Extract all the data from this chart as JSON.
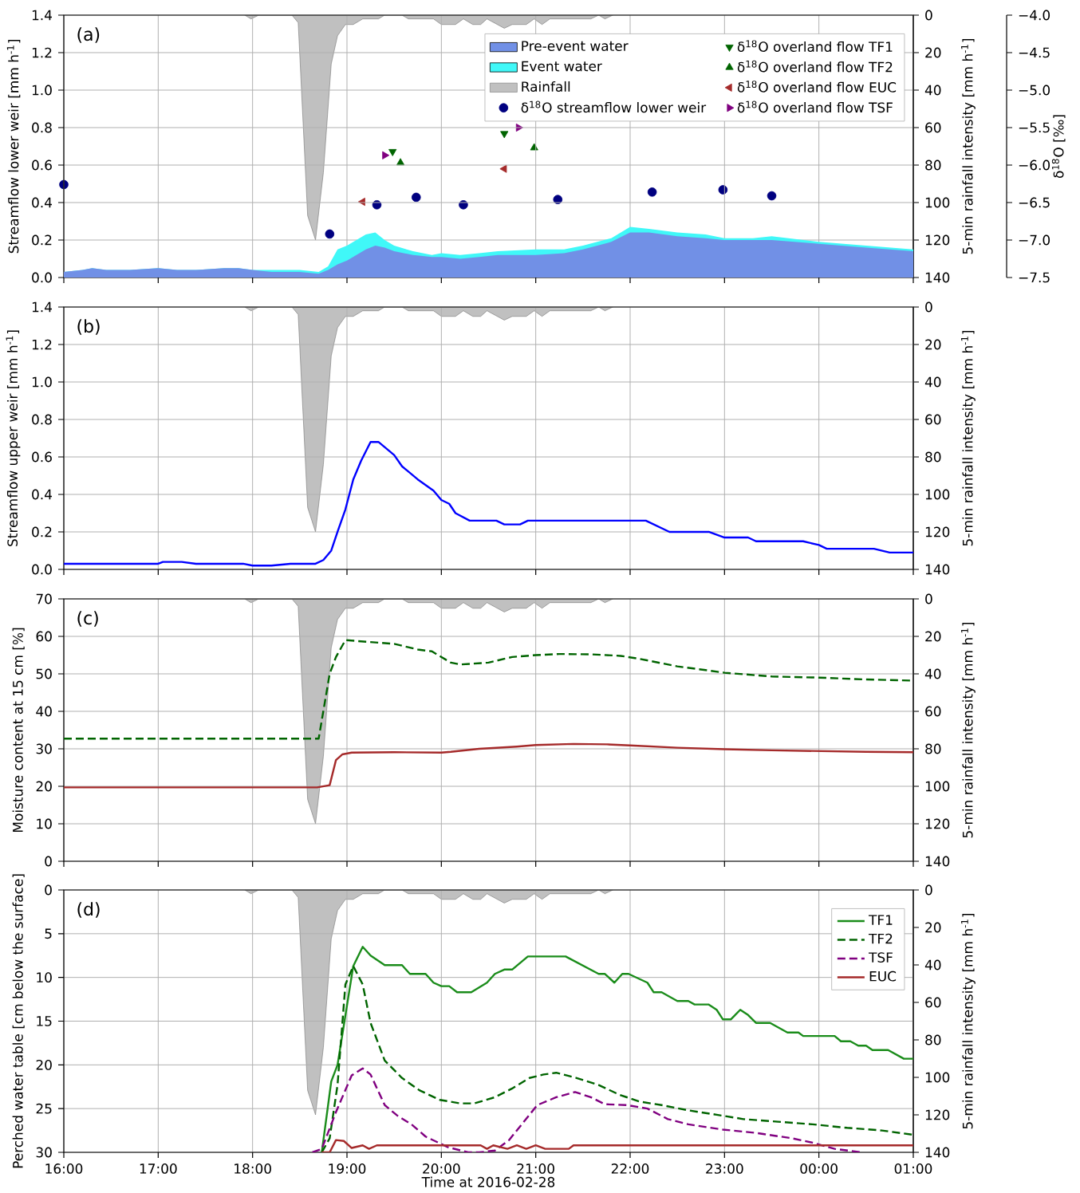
{
  "chart_data": [
    {
      "type": "area",
      "title": "(a)",
      "ylabel": "Streamflow lower weir [mm h$^{-1}$]",
      "y2label": "5-min rainfall intensity [mm h$^{-1}$]",
      "y3label": "δ$^{18}$O [‰]",
      "stacked": true,
      "grid": true,
      "legend": "top right",
      "tick_labels": "y",
      "xlim": [
        "2016-02-28T16:00",
        "2016-02-29T01:00"
      ],
      "xticks": [
        {
          "value": "2016-02-28T16:00",
          "label": null
        },
        {
          "value": "2016-02-28T17:00",
          "label": null
        },
        {
          "value": "2016-02-28T18:00",
          "label": null
        },
        {
          "value": "2016-02-28T19:00",
          "label": null
        },
        {
          "value": "2016-02-28T20:00",
          "label": null
        },
        {
          "value": "2016-02-28T21:00",
          "label": null
        },
        {
          "value": "2016-02-28T22:00",
          "label": null
        },
        {
          "value": "2016-02-28T23:00",
          "label": null
        },
        {
          "value": "2016-02-29T00:00",
          "label": null
        },
        {
          "value": "2016-02-29T01:00",
          "label": null
        }
      ],
      "ylim": [
        0,
        1.4
      ],
      "yticks": [
        {
          "value": 0,
          "label": "0.0"
        },
        {
          "value": 0.2,
          "label": "0.2"
        },
        {
          "value": 0.4,
          "label": "0.4"
        },
        {
          "value": 0.6,
          "label": "0.6"
        },
        {
          "value": 0.8,
          "label": "0.8"
        },
        {
          "value": 1.0,
          "label": "1.0"
        },
        {
          "value": 1.2,
          "label": "1.2"
        },
        {
          "value": 1.4,
          "label": "1.4"
        }
      ],
      "y2lim": [
        140,
        0
      ],
      "y2ticks": [
        0,
        20,
        40,
        60,
        80,
        100,
        120,
        140
      ],
      "y3lim": [
        -7.5,
        -4.0
      ],
      "y3ticks": [
        {
          "value": -4.0,
          "label": "−4.0"
        },
        {
          "value": -4.5,
          "label": "−4.5"
        },
        {
          "value": -5.0,
          "label": "−5.0"
        },
        {
          "value": -5.5,
          "label": "−5.5"
        },
        {
          "value": -6.0,
          "label": "−6.0"
        },
        {
          "value": -6.5,
          "label": "−6.5"
        },
        {
          "value": -7.0,
          "label": "−7.0"
        },
        {
          "value": -7.5,
          "label": "−7.5"
        }
      ],
      "series": [
        {
          "name": "Pre-event water",
          "color": "#7190e6",
          "x": [
            "2016-02-28T16:00",
            "2016-02-28T16:12",
            "2016-02-28T16:18",
            "2016-02-28T16:27",
            "2016-02-28T16:42",
            "2016-02-28T17:00",
            "2016-02-28T17:12",
            "2016-02-28T17:24",
            "2016-02-28T17:42",
            "2016-02-28T17:51",
            "2016-02-28T18:00",
            "2016-02-28T18:12",
            "2016-02-28T18:30",
            "2016-02-28T18:42",
            "2016-02-28T18:48",
            "2016-02-28T18:54",
            "2016-02-28T19:00",
            "2016-02-28T19:06",
            "2016-02-28T19:12",
            "2016-02-28T19:18",
            "2016-02-28T19:24",
            "2016-02-28T19:30",
            "2016-02-28T19:42",
            "2016-02-28T19:54",
            "2016-02-28T20:00",
            "2016-02-28T20:12",
            "2016-02-28T20:24",
            "2016-02-28T20:36",
            "2016-02-28T21:00",
            "2016-02-28T21:18",
            "2016-02-28T21:30",
            "2016-02-28T21:48",
            "2016-02-28T22:00",
            "2016-02-28T22:12",
            "2016-02-28T22:30",
            "2016-02-28T22:48",
            "2016-02-28T23:00",
            "2016-02-28T23:06",
            "2016-02-28T23:18",
            "2016-02-28T23:30",
            "2016-02-29T00:00",
            "2016-02-29T00:30",
            "2016-02-29T01:00"
          ],
          "values": [
            0.03,
            0.04,
            0.05,
            0.04,
            0.04,
            0.05,
            0.04,
            0.04,
            0.05,
            0.05,
            0.04,
            0.03,
            0.03,
            0.02,
            0.04,
            0.07,
            0.09,
            0.12,
            0.15,
            0.17,
            0.16,
            0.14,
            0.12,
            0.11,
            0.11,
            0.1,
            0.11,
            0.12,
            0.12,
            0.13,
            0.15,
            0.19,
            0.24,
            0.24,
            0.22,
            0.21,
            0.2,
            0.2,
            0.2,
            0.2,
            0.18,
            0.16,
            0.14
          ]
        },
        {
          "name": "Event water",
          "color": "#40f8f8",
          "x": [
            "2016-02-28T16:00",
            "2016-02-28T16:12",
            "2016-02-28T16:18",
            "2016-02-28T16:27",
            "2016-02-28T16:42",
            "2016-02-28T17:00",
            "2016-02-28T17:12",
            "2016-02-28T17:24",
            "2016-02-28T17:42",
            "2016-02-28T17:51",
            "2016-02-28T18:00",
            "2016-02-28T18:12",
            "2016-02-28T18:30",
            "2016-02-28T18:42",
            "2016-02-28T18:48",
            "2016-02-28T18:54",
            "2016-02-28T19:00",
            "2016-02-28T19:06",
            "2016-02-28T19:12",
            "2016-02-28T19:18",
            "2016-02-28T19:24",
            "2016-02-28T19:30",
            "2016-02-28T19:42",
            "2016-02-28T19:54",
            "2016-02-28T20:00",
            "2016-02-28T20:12",
            "2016-02-28T20:24",
            "2016-02-28T20:36",
            "2016-02-28T21:00",
            "2016-02-28T21:18",
            "2016-02-28T21:30",
            "2016-02-28T21:48",
            "2016-02-28T22:00",
            "2016-02-28T22:12",
            "2016-02-28T22:30",
            "2016-02-28T22:48",
            "2016-02-28T23:00",
            "2016-02-28T23:06",
            "2016-02-28T23:18",
            "2016-02-28T23:30",
            "2016-02-29T00:00",
            "2016-02-29T00:30",
            "2016-02-29T01:00"
          ],
          "values": [
            0,
            0,
            0,
            0,
            0,
            0,
            0,
            0,
            0,
            0,
            0,
            0.01,
            0.01,
            0.01,
            0.02,
            0.08,
            0.08,
            0.08,
            0.08,
            0.07,
            0.04,
            0.03,
            0.02,
            0.01,
            0.02,
            0.02,
            0.02,
            0.02,
            0.03,
            0.02,
            0.02,
            0.02,
            0.03,
            0.02,
            0.02,
            0.02,
            0.01,
            0.01,
            0.01,
            0.02,
            0.01,
            0.01,
            0.01
          ]
        },
        {
          "name": "Rainfall",
          "axis": "y2",
          "color": "#c0c0c0",
          "x": [
            "2016-02-28T17:55",
            "2016-02-28T17:59",
            "2016-02-28T18:04",
            "2016-02-28T18:25",
            "2016-02-28T18:29",
            "2016-02-28T18:35",
            "2016-02-28T18:40",
            "2016-02-28T18:45",
            "2016-02-28T18:50",
            "2016-02-28T18:54",
            "2016-02-28T18:59",
            "2016-02-28T19:04",
            "2016-02-28T19:10",
            "2016-02-28T19:20",
            "2016-02-28T19:24",
            "2016-02-28T19:35",
            "2016-02-28T19:39",
            "2016-02-28T19:55",
            "2016-02-28T20:00",
            "2016-02-28T20:09",
            "2016-02-28T20:14",
            "2016-02-28T20:20",
            "2016-02-28T20:25",
            "2016-02-28T20:29",
            "2016-02-28T20:40",
            "2016-02-28T20:45",
            "2016-02-28T20:54",
            "2016-02-28T20:59",
            "2016-02-28T21:04",
            "2016-02-28T21:09",
            "2016-02-28T21:35",
            "2016-02-28T21:40",
            "2016-02-28T21:44",
            "2016-02-28T21:49"
          ],
          "values": [
            0,
            2,
            0,
            0,
            4,
            107,
            120,
            84,
            26,
            11,
            5,
            5,
            2,
            2,
            0,
            0,
            2,
            2,
            5,
            5,
            2,
            5,
            5,
            2,
            7,
            5,
            5,
            2,
            5,
            2,
            2,
            0,
            2,
            0
          ]
        },
        {
          "name": "δ$^{18}$O streamflow lower weir",
          "type": "scatter",
          "axis": "y3",
          "marker": "circle",
          "color": "#000080",
          "x": [
            "2016-02-28T16:00",
            "2016-02-28T18:49",
            "2016-02-28T19:19",
            "2016-02-28T19:44",
            "2016-02-28T20:14",
            "2016-02-28T21:14",
            "2016-02-28T22:14",
            "2016-02-28T22:59",
            "2016-02-28T23:30"
          ],
          "values": [
            -6.26,
            -6.92,
            -6.53,
            -6.43,
            -6.53,
            -6.46,
            -6.36,
            -6.33,
            -6.41
          ]
        },
        {
          "name": "δ$^{18}$O overland flow TF1",
          "type": "scatter",
          "axis": "y3",
          "marker": "triangle_down",
          "color": "#006400",
          "x": [
            "2016-02-28T19:29",
            "2016-02-28T20:40"
          ],
          "values": [
            -5.82,
            -5.58
          ]
        },
        {
          "name": "δ$^{18}$O overland flow TF2",
          "type": "scatter",
          "axis": "y3",
          "marker": "triangle",
          "color": "#006400",
          "x": [
            "2016-02-28T19:34",
            "2016-02-28T20:59"
          ],
          "values": [
            -5.97,
            -5.77
          ]
        },
        {
          "name": "δ$^{18}$O overland flow EUC",
          "type": "scatter",
          "axis": "y3",
          "marker": "triangle_left",
          "color": "#a52a2a",
          "x": [
            "2016-02-28T19:10",
            "2016-02-28T20:40"
          ],
          "values": [
            -6.49,
            -6.05
          ]
        },
        {
          "name": "δ$^{18}$O overland flow TSF",
          "type": "scatter",
          "axis": "y3",
          "marker": "triangle_right",
          "color": "#800080",
          "x": [
            "2016-02-28T19:24",
            "2016-02-28T20:49"
          ],
          "values": [
            -5.87,
            -5.5
          ]
        }
      ]
    },
    {
      "type": "line",
      "title": "(b)",
      "ylabel": "Streamflow upper weir [mm h$^{-1}$]",
      "y2label": "5-min rainfall intensity [mm h$^{-1}$]",
      "grid": true,
      "tick_labels": "y",
      "xlim": [
        "2016-02-28T16:00",
        "2016-02-29T01:00"
      ],
      "xticks": [
        {
          "value": "2016-02-28T16:00",
          "label": null
        },
        {
          "value": "2016-02-28T17:00",
          "label": null
        },
        {
          "value": "2016-02-28T18:00",
          "label": null
        },
        {
          "value": "2016-02-28T19:00",
          "label": null
        },
        {
          "value": "2016-02-28T20:00",
          "label": null
        },
        {
          "value": "2016-02-28T21:00",
          "label": null
        },
        {
          "value": "2016-02-28T22:00",
          "label": null
        },
        {
          "value": "2016-02-28T23:00",
          "label": null
        },
        {
          "value": "2016-02-29T00:00",
          "label": null
        },
        {
          "value": "2016-02-29T01:00",
          "label": null
        }
      ],
      "ylim": [
        0,
        1.4
      ],
      "yticks": [
        {
          "value": 0,
          "label": "0.0"
        },
        {
          "value": 0.2,
          "label": "0.2"
        },
        {
          "value": 0.4,
          "label": "0.4"
        },
        {
          "value": 0.6,
          "label": "0.6"
        },
        {
          "value": 0.8,
          "label": "0.8"
        },
        {
          "value": 1.0,
          "label": "1.0"
        },
        {
          "value": 1.2,
          "label": "1.2"
        },
        {
          "value": 1.4,
          "label": "1.4"
        }
      ],
      "y2lim": [
        140,
        0
      ],
      "y2ticks": [
        0,
        20,
        40,
        60,
        80,
        100,
        120,
        140
      ],
      "series": [
        {
          "color": "#0000ff",
          "x": [
            "2016-02-28T16:00",
            "2016-02-28T17:00",
            "2016-02-28T17:03",
            "2016-02-28T17:09",
            "2016-02-28T17:15",
            "2016-02-28T17:24",
            "2016-02-28T17:54",
            "2016-02-28T18:00",
            "2016-02-28T18:06",
            "2016-02-28T18:12",
            "2016-02-28T18:24",
            "2016-02-28T18:36",
            "2016-02-28T18:40",
            "2016-02-28T18:45",
            "2016-02-28T18:50",
            "2016-02-28T18:54",
            "2016-02-28T18:59",
            "2016-02-28T19:04",
            "2016-02-28T19:09",
            "2016-02-28T19:15",
            "2016-02-28T19:20",
            "2016-02-28T19:30",
            "2016-02-28T19:35",
            "2016-02-28T19:45",
            "2016-02-28T19:55",
            "2016-02-28T20:00",
            "2016-02-28T20:05",
            "2016-02-28T20:09",
            "2016-02-28T20:18",
            "2016-02-28T20:35",
            "2016-02-28T20:40",
            "2016-02-28T20:50",
            "2016-02-28T20:55",
            "2016-02-28T22:10",
            "2016-02-28T22:25",
            "2016-02-28T22:50",
            "2016-02-28T23:00",
            "2016-02-28T23:15",
            "2016-02-28T23:20",
            "2016-02-28T23:50",
            "2016-02-29T00:00",
            "2016-02-29T00:05",
            "2016-02-29T00:35",
            "2016-02-29T00:45",
            "2016-02-29T01:00"
          ],
          "values": [
            0.03,
            0.03,
            0.04,
            0.04,
            0.04,
            0.03,
            0.03,
            0.02,
            0.02,
            0.02,
            0.03,
            0.03,
            0.03,
            0.05,
            0.1,
            0.2,
            0.32,
            0.48,
            0.58,
            0.68,
            0.68,
            0.61,
            0.55,
            0.48,
            0.42,
            0.37,
            0.35,
            0.3,
            0.26,
            0.26,
            0.24,
            0.24,
            0.26,
            0.26,
            0.2,
            0.2,
            0.17,
            0.17,
            0.15,
            0.15,
            0.13,
            0.11,
            0.11,
            0.09,
            0.09
          ]
        },
        {
          "type": "area",
          "axis": "y2",
          "color": "#c0c0c0",
          "x": [
            "2016-02-28T17:55",
            "2016-02-28T17:59",
            "2016-02-28T18:04",
            "2016-02-28T18:25",
            "2016-02-28T18:29",
            "2016-02-28T18:35",
            "2016-02-28T18:40",
            "2016-02-28T18:45",
            "2016-02-28T18:50",
            "2016-02-28T18:54",
            "2016-02-28T18:59",
            "2016-02-28T19:04",
            "2016-02-28T19:10",
            "2016-02-28T19:20",
            "2016-02-28T19:24",
            "2016-02-28T19:35",
            "2016-02-28T19:39",
            "2016-02-28T19:55",
            "2016-02-28T20:00",
            "2016-02-28T20:09",
            "2016-02-28T20:14",
            "2016-02-28T20:20",
            "2016-02-28T20:25",
            "2016-02-28T20:29",
            "2016-02-28T20:40",
            "2016-02-28T20:45",
            "2016-02-28T20:54",
            "2016-02-28T20:59",
            "2016-02-28T21:04",
            "2016-02-28T21:09",
            "2016-02-28T21:35",
            "2016-02-28T21:40",
            "2016-02-28T21:44",
            "2016-02-28T21:49"
          ],
          "values": [
            0,
            2,
            0,
            0,
            4,
            107,
            120,
            84,
            26,
            11,
            5,
            5,
            2,
            2,
            0,
            0,
            2,
            2,
            5,
            5,
            2,
            5,
            5,
            2,
            7,
            5,
            5,
            2,
            5,
            2,
            2,
            0,
            2,
            0
          ]
        }
      ]
    },
    {
      "type": "line",
      "title": "(c)",
      "ylabel": "Moisture content at 15 cm [%]",
      "y2label": "5-min rainfall intensity [mm h$^{-1}$]",
      "grid": true,
      "tick_labels": "y",
      "xlim": [
        "2016-02-28T16:00",
        "2016-02-29T01:00"
      ],
      "xticks": [
        {
          "value": "2016-02-28T16:00",
          "label": null
        },
        {
          "value": "2016-02-28T17:00",
          "label": null
        },
        {
          "value": "2016-02-28T18:00",
          "label": null
        },
        {
          "value": "2016-02-28T19:00",
          "label": null
        },
        {
          "value": "2016-02-28T20:00",
          "label": null
        },
        {
          "value": "2016-02-28T21:00",
          "label": null
        },
        {
          "value": "2016-02-28T22:00",
          "label": null
        },
        {
          "value": "2016-02-28T23:00",
          "label": null
        },
        {
          "value": "2016-02-29T00:00",
          "label": null
        },
        {
          "value": "2016-02-29T01:00",
          "label": null
        }
      ],
      "ylim": [
        0,
        70
      ],
      "yticks": [
        0,
        10,
        20,
        30,
        40,
        50,
        60,
        70
      ],
      "y2lim": [
        140,
        0
      ],
      "y2ticks": [
        0,
        20,
        40,
        60,
        80,
        100,
        120,
        140
      ],
      "series": [
        {
          "line_style": "dashed",
          "color": "#006400",
          "x": [
            "2016-02-28T16:00",
            "2016-02-28T18:42",
            "2016-02-28T18:49",
            "2016-02-28T18:53",
            "2016-02-28T18:59",
            "2016-02-28T19:30",
            "2016-02-28T19:45",
            "2016-02-28T19:54",
            "2016-02-28T20:06",
            "2016-02-28T20:12",
            "2016-02-28T20:30",
            "2016-02-28T20:45",
            "2016-02-28T21:00",
            "2016-02-28T21:15",
            "2016-02-28T21:36",
            "2016-02-28T21:54",
            "2016-02-28T22:06",
            "2016-02-28T22:30",
            "2016-02-28T22:48",
            "2016-02-28T23:00",
            "2016-02-28T23:30",
            "2016-02-29T00:00",
            "2016-02-29T00:30",
            "2016-02-29T01:00"
          ],
          "values": [
            32.7,
            32.7,
            50,
            54.5,
            59,
            58,
            56.5,
            56,
            53,
            52.5,
            53,
            54.5,
            55,
            55.3,
            55.2,
            54.8,
            54,
            52,
            51,
            50.3,
            49.3,
            49,
            48.5,
            48.2
          ]
        },
        {
          "line_style": "solid",
          "color": "#a52a2a",
          "x": [
            "2016-02-28T16:00",
            "2016-02-28T18:41",
            "2016-02-28T18:49",
            "2016-02-28T18:53",
            "2016-02-28T18:57",
            "2016-02-28T19:03",
            "2016-02-28T19:30",
            "2016-02-28T20:00",
            "2016-02-28T20:06",
            "2016-02-28T20:24",
            "2016-02-28T20:48",
            "2016-02-28T21:00",
            "2016-02-28T21:24",
            "2016-02-28T21:45",
            "2016-02-28T22:00",
            "2016-02-28T22:30",
            "2016-02-28T23:00",
            "2016-02-28T23:30",
            "2016-02-29T00:00",
            "2016-02-29T00:30",
            "2016-02-29T01:00"
          ],
          "values": [
            19.7,
            19.7,
            20.3,
            27,
            28.5,
            29,
            29.1,
            29,
            29.2,
            30,
            30.6,
            31,
            31.3,
            31.2,
            30.9,
            30.3,
            29.9,
            29.6,
            29.4,
            29.2,
            29.1
          ]
        },
        {
          "type": "area",
          "axis": "y2",
          "color": "#c0c0c0",
          "x": [
            "2016-02-28T17:55",
            "2016-02-28T17:59",
            "2016-02-28T18:04",
            "2016-02-28T18:25",
            "2016-02-28T18:29",
            "2016-02-28T18:35",
            "2016-02-28T18:40",
            "2016-02-28T18:45",
            "2016-02-28T18:50",
            "2016-02-28T18:54",
            "2016-02-28T18:59",
            "2016-02-28T19:04",
            "2016-02-28T19:10",
            "2016-02-28T19:20",
            "2016-02-28T19:24",
            "2016-02-28T19:35",
            "2016-02-28T19:39",
            "2016-02-28T19:55",
            "2016-02-28T20:00",
            "2016-02-28T20:09",
            "2016-02-28T20:14",
            "2016-02-28T20:20",
            "2016-02-28T20:25",
            "2016-02-28T20:29",
            "2016-02-28T20:40",
            "2016-02-28T20:45",
            "2016-02-28T20:54",
            "2016-02-28T20:59",
            "2016-02-28T21:04",
            "2016-02-28T21:09",
            "2016-02-28T21:35",
            "2016-02-28T21:40",
            "2016-02-28T21:44",
            "2016-02-28T21:49"
          ],
          "values": [
            0,
            2,
            0,
            0,
            4,
            107,
            120,
            84,
            26,
            11,
            5,
            5,
            2,
            2,
            0,
            0,
            2,
            2,
            5,
            5,
            2,
            5,
            5,
            2,
            7,
            5,
            5,
            2,
            5,
            2,
            2,
            0,
            2,
            0
          ]
        }
      ]
    },
    {
      "type": "line",
      "title": "(d)",
      "xlabel": "Time at 2016-02-28",
      "ylabel": "Perched water table [cm below the surface]",
      "y2label": "5-min rainfall intensity [mm h$^{-1}$]",
      "grid": true,
      "legend": "top right",
      "xlim": [
        "2016-02-28T16:00",
        "2016-02-29T01:00"
      ],
      "xticks": [
        {
          "value": "2016-02-28T16:00",
          "label": "16:00"
        },
        {
          "value": "2016-02-28T17:00",
          "label": "17:00"
        },
        {
          "value": "2016-02-28T18:00",
          "label": "18:00"
        },
        {
          "value": "2016-02-28T19:00",
          "label": "19:00"
        },
        {
          "value": "2016-02-28T20:00",
          "label": "20:00"
        },
        {
          "value": "2016-02-28T21:00",
          "label": "21:00"
        },
        {
          "value": "2016-02-28T22:00",
          "label": "22:00"
        },
        {
          "value": "2016-02-28T23:00",
          "label": "23:00"
        },
        {
          "value": "2016-02-29T00:00",
          "label": "00:00"
        },
        {
          "value": "2016-02-29T01:00",
          "label": "01:00"
        }
      ],
      "ylim": [
        30,
        0
      ],
      "yticks": [
        0,
        5,
        10,
        15,
        20,
        25,
        30
      ],
      "y2lim": [
        140,
        0
      ],
      "y2ticks": [
        0,
        20,
        40,
        60,
        80,
        100,
        120,
        140
      ],
      "series": [
        {
          "name": "TF1",
          "line_style": "solid",
          "color": "#1a8c1a",
          "x": [
            "2016-02-28T18:44",
            "2016-02-28T18:50",
            "2016-02-28T18:54",
            "2016-02-28T19:04",
            "2016-02-28T19:10",
            "2016-02-28T19:15",
            "2016-02-28T19:24",
            "2016-02-28T19:35",
            "2016-02-28T19:40",
            "2016-02-28T19:50",
            "2016-02-28T19:55",
            "2016-02-28T20:00",
            "2016-02-28T20:05",
            "2016-02-28T20:10",
            "2016-02-28T20:19",
            "2016-02-28T20:29",
            "2016-02-28T20:34",
            "2016-02-28T20:40",
            "2016-02-28T20:45",
            "2016-02-28T20:49",
            "2016-02-28T20:55",
            "2016-02-28T21:19",
            "2016-02-28T21:40",
            "2016-02-28T21:44",
            "2016-02-28T21:50",
            "2016-02-28T21:55",
            "2016-02-28T21:59",
            "2016-02-28T22:11",
            "2016-02-28T22:15",
            "2016-02-28T22:20",
            "2016-02-28T22:30",
            "2016-02-28T22:37",
            "2016-02-28T22:41",
            "2016-02-28T22:50",
            "2016-02-28T22:55",
            "2016-02-28T22:59",
            "2016-02-28T23:04",
            "2016-02-28T23:10",
            "2016-02-28T23:15",
            "2016-02-28T23:20",
            "2016-02-28T23:29",
            "2016-02-28T23:40",
            "2016-02-28T23:47",
            "2016-02-28T23:50",
            "2016-02-29T00:10",
            "2016-02-29T00:14",
            "2016-02-29T00:20",
            "2016-02-29T00:25",
            "2016-02-29T00:30",
            "2016-02-29T00:34",
            "2016-02-29T00:44",
            "2016-02-29T00:54",
            "2016-02-29T01:00"
          ],
          "values": [
            30,
            21.9,
            20,
            8.7,
            6.5,
            7.5,
            8.6,
            8.6,
            9.6,
            9.6,
            10.6,
            11,
            11,
            11.7,
            11.7,
            10.6,
            9.6,
            9.1,
            9.1,
            8.5,
            7.6,
            7.6,
            9.6,
            9.6,
            10.6,
            9.6,
            9.6,
            10.6,
            11.7,
            11.7,
            12.7,
            12.7,
            13.1,
            13.1,
            13.7,
            14.8,
            14.8,
            13.7,
            14.3,
            15.2,
            15.2,
            16.3,
            16.3,
            16.7,
            16.7,
            17.3,
            17.3,
            17.8,
            17.8,
            18.3,
            18.3,
            19.3,
            19.3
          ]
        },
        {
          "name": "TF2",
          "line_style": "dashed",
          "color": "#006400",
          "x": [
            "2016-02-28T18:44",
            "2016-02-28T18:49",
            "2016-02-28T18:54",
            "2016-02-28T18:59",
            "2016-02-28T19:04",
            "2016-02-28T19:10",
            "2016-02-28T19:15",
            "2016-02-28T19:24",
            "2016-02-28T19:35",
            "2016-02-28T19:46",
            "2016-02-28T19:59",
            "2016-02-28T20:12",
            "2016-02-28T20:21",
            "2016-02-28T20:34",
            "2016-02-28T20:45",
            "2016-02-28T20:56",
            "2016-02-28T21:05",
            "2016-02-28T21:13",
            "2016-02-28T21:26",
            "2016-02-28T21:40",
            "2016-02-28T21:53",
            "2016-02-28T22:06",
            "2016-02-28T22:20",
            "2016-02-28T22:37",
            "2016-02-28T22:55",
            "2016-02-28T23:12",
            "2016-02-28T23:34",
            "2016-02-28T23:56",
            "2016-02-29T00:18",
            "2016-02-29T00:40",
            "2016-02-29T01:00"
          ],
          "values": [
            30,
            28.4,
            22.3,
            10.8,
            8.7,
            10.8,
            15.2,
            19.5,
            21.5,
            22.9,
            24,
            24.4,
            24.4,
            23.7,
            22.7,
            21.5,
            21.1,
            20.9,
            21.5,
            22.3,
            23.4,
            24.2,
            24.6,
            25.2,
            25.7,
            26.2,
            26.5,
            26.8,
            27.2,
            27.5,
            28
          ]
        },
        {
          "name": "TSF",
          "line_style": "dashed",
          "color": "#800080",
          "x": [
            "2016-02-28T18:38",
            "2016-02-28T18:44",
            "2016-02-28T18:53",
            "2016-02-28T19:03",
            "2016-02-28T19:10",
            "2016-02-28T19:15",
            "2016-02-28T19:24",
            "2016-02-28T19:32",
            "2016-02-28T19:41",
            "2016-02-28T19:50",
            "2016-02-28T20:04",
            "2016-02-28T20:17",
            "2016-02-28T20:24",
            "2016-02-28T20:34",
            "2016-02-28T20:43",
            "2016-02-28T20:52",
            "2016-02-28T21:01",
            "2016-02-28T21:13",
            "2016-02-28T21:25",
            "2016-02-28T21:35",
            "2016-02-28T21:44",
            "2016-02-28T21:58",
            "2016-02-28T22:11",
            "2016-02-28T22:24",
            "2016-02-28T22:37",
            "2016-02-28T22:59",
            "2016-02-28T23:21",
            "2016-02-28T23:43",
            "2016-02-28T23:56",
            "2016-02-29T00:10",
            "2016-02-29T00:27"
          ],
          "values": [
            30,
            29.6,
            25.4,
            21.2,
            20.4,
            21.1,
            24.6,
            25.8,
            26.8,
            28.2,
            29.4,
            30,
            30,
            29.8,
            28.6,
            26.6,
            24.6,
            23.7,
            23.1,
            23.7,
            24.5,
            24.6,
            25,
            26.2,
            26.8,
            27.4,
            27.8,
            28.4,
            28.9,
            29.6,
            30
          ]
        },
        {
          "name": "EUC",
          "line_style": "solid",
          "color": "#a52a2a",
          "x": [
            "2016-02-28T18:44",
            "2016-02-28T18:49",
            "2016-02-28T18:53",
            "2016-02-28T18:58",
            "2016-02-28T19:03",
            "2016-02-28T19:10",
            "2016-02-28T19:14",
            "2016-02-28T19:19",
            "2016-02-28T20:25",
            "2016-02-28T20:29",
            "2016-02-28T20:33",
            "2016-02-28T20:42",
            "2016-02-28T20:48",
            "2016-02-28T20:54",
            "2016-02-28T21:00",
            "2016-02-28T21:06",
            "2016-02-28T21:21",
            "2016-02-28T21:24",
            "2016-02-29T01:00"
          ],
          "values": [
            30,
            30,
            28.6,
            28.7,
            29.5,
            29.2,
            29.6,
            29.2,
            29.2,
            29.6,
            29.2,
            29.6,
            29.2,
            29.6,
            29.2,
            29.6,
            29.6,
            29.2,
            29.2
          ]
        },
        {
          "type": "area",
          "axis": "y2",
          "color": "#c0c0c0",
          "x": [
            "2016-02-28T17:55",
            "2016-02-28T17:59",
            "2016-02-28T18:04",
            "2016-02-28T18:25",
            "2016-02-28T18:29",
            "2016-02-28T18:35",
            "2016-02-28T18:40",
            "2016-02-28T18:45",
            "2016-02-28T18:50",
            "2016-02-28T18:54",
            "2016-02-28T18:59",
            "2016-02-28T19:04",
            "2016-02-28T19:10",
            "2016-02-28T19:20",
            "2016-02-28T19:24",
            "2016-02-28T19:35",
            "2016-02-28T19:39",
            "2016-02-28T19:55",
            "2016-02-28T20:00",
            "2016-02-28T20:09",
            "2016-02-28T20:14",
            "2016-02-28T20:20",
            "2016-02-28T20:25",
            "2016-02-28T20:29",
            "2016-02-28T20:40",
            "2016-02-28T20:45",
            "2016-02-28T20:54",
            "2016-02-28T20:59",
            "2016-02-28T21:04",
            "2016-02-28T21:09",
            "2016-02-28T21:35",
            "2016-02-28T21:40",
            "2016-02-28T21:44",
            "2016-02-28T21:49"
          ],
          "values": [
            0,
            2,
            0,
            0,
            4,
            107,
            120,
            84,
            26,
            11,
            5,
            5,
            2,
            2,
            0,
            0,
            2,
            2,
            5,
            5,
            2,
            5,
            5,
            2,
            7,
            5,
            5,
            2,
            5,
            2,
            2,
            0,
            2,
            0
          ]
        }
      ]
    }
  ]
}
